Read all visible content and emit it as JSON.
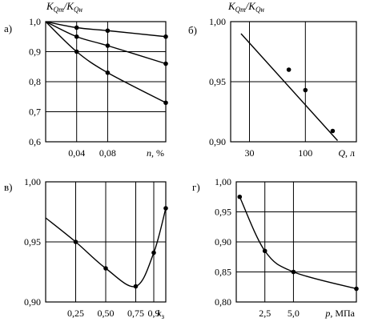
{
  "chart_data": [
    {
      "id": "a",
      "panel_label": "а)",
      "type": "line",
      "ylabel": "KQт/KQн",
      "ylabel_main": "K",
      "ylabel_sub1": "Qт",
      "ylabel_sub2": "Qн",
      "xlabel": "n, %",
      "xlim": [
        0,
        0.155
      ],
      "ylim": [
        0.6,
        1.0
      ],
      "grid": true,
      "x_ticks": [
        {
          "value": 0.04,
          "label": "0,04"
        },
        {
          "value": 0.08,
          "label": "0,08"
        }
      ],
      "y_ticks": [
        {
          "value": 1.0,
          "label": "1,0"
        },
        {
          "value": 0.9,
          "label": "0,9"
        },
        {
          "value": 0.8,
          "label": "0,8"
        },
        {
          "value": 0.7,
          "label": "0,7"
        },
        {
          "value": 0.6,
          "label": "0,6"
        }
      ],
      "series": [
        {
          "x": [
            0,
            0.04,
            0.08,
            0.155
          ],
          "y": [
            1.0,
            0.98,
            0.97,
            0.95
          ]
        },
        {
          "x": [
            0,
            0.04,
            0.08,
            0.155
          ],
          "y": [
            1.0,
            0.95,
            0.92,
            0.86
          ]
        },
        {
          "x": [
            0,
            0.04,
            0.08,
            0.155
          ],
          "y": [
            1.0,
            0.9,
            0.83,
            0.73
          ]
        }
      ]
    },
    {
      "id": "b",
      "panel_label": "б)",
      "type": "line",
      "ylabel": "KQт/KQн",
      "ylabel_main": "K",
      "ylabel_sub1": "Qт",
      "ylabel_sub2": "Qн",
      "xlabel": "Q, л",
      "xscale": "log",
      "xlim": [
        20,
        300
      ],
      "ylim": [
        0.9,
        1.0
      ],
      "grid": true,
      "x_ticks": [
        {
          "value": 30,
          "label": "30"
        },
        {
          "value": 100,
          "label": "100"
        }
      ],
      "y_ticks": [
        {
          "value": 1.0,
          "label": "1,00"
        },
        {
          "value": 0.95,
          "label": "0,95"
        },
        {
          "value": 0.9,
          "label": "0,90"
        }
      ],
      "series": [
        {
          "x": [
            70,
            100,
            180
          ],
          "y": [
            0.96,
            0.943,
            0.909
          ],
          "line": [
            [
              25,
              0.99
            ],
            [
              200,
              0.901
            ]
          ]
        }
      ]
    },
    {
      "id": "c",
      "panel_label": "в)",
      "type": "line",
      "xlabel": "k",
      "xlabel_sub": "з",
      "xlim": [
        0,
        1.0
      ],
      "ylim": [
        0.9,
        1.0
      ],
      "grid": true,
      "x_ticks": [
        {
          "value": 0.25,
          "label": "0,25"
        },
        {
          "value": 0.5,
          "label": "0,50"
        },
        {
          "value": 0.75,
          "label": "0,75"
        },
        {
          "value": 0.9,
          "label": "0,9"
        }
      ],
      "y_ticks": [
        {
          "value": 1.0,
          "label": "1,00"
        },
        {
          "value": 0.95,
          "label": "0,95"
        },
        {
          "value": 0.9,
          "label": "0,90"
        }
      ],
      "series": [
        {
          "x": [
            0,
            0.25,
            0.5,
            0.75,
            0.9,
            1.0
          ],
          "y": [
            0.97,
            0.95,
            0.928,
            0.913,
            0.941,
            0.978
          ]
        }
      ]
    },
    {
      "id": "d",
      "panel_label": "г)",
      "type": "line",
      "xlabel": "p, МПа",
      "xlim": [
        0,
        10.5
      ],
      "ylim": [
        0.8,
        1.0
      ],
      "grid": true,
      "x_ticks": [
        {
          "value": 2.5,
          "label": "2,5"
        },
        {
          "value": 5.0,
          "label": "5,0"
        }
      ],
      "y_ticks": [
        {
          "value": 1.0,
          "label": "1,00"
        },
        {
          "value": 0.95,
          "label": "0,95"
        },
        {
          "value": 0.9,
          "label": "0,90"
        },
        {
          "value": 0.85,
          "label": "0,85"
        },
        {
          "value": 0.8,
          "label": "0,80"
        }
      ],
      "series": [
        {
          "x": [
            0.3,
            2.5,
            5.0,
            10.5
          ],
          "y": [
            0.975,
            0.885,
            0.85,
            0.822
          ]
        }
      ]
    }
  ]
}
